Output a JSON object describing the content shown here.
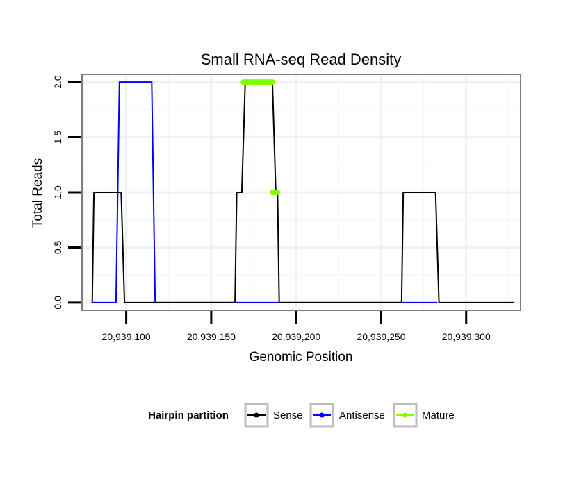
{
  "chart_data": {
    "type": "line",
    "title": "Small RNA-seq Read Density",
    "xlabel": "Genomic Position",
    "ylabel": "Total Reads",
    "xlim": [
      20939074,
      20939332
    ],
    "ylim": [
      -0.07,
      2.07
    ],
    "x_ticks": [
      20939100,
      20939150,
      20939200,
      20939250,
      20939300
    ],
    "x_tick_labels": [
      "20,939,100",
      "20,939,150",
      "20,939,200",
      "20,939,250",
      "20,939,300"
    ],
    "y_ticks": [
      0.0,
      0.5,
      1.0,
      1.5,
      2.0
    ],
    "y_tick_labels": [
      "0.0",
      "0.5",
      "1.0",
      "1.5",
      "2.0"
    ],
    "grid": true,
    "legend": {
      "title": "Hairpin partition",
      "position": "bottom",
      "entries": [
        "Sense",
        "Antisense",
        "Mature"
      ]
    },
    "series": [
      {
        "name": "Antisense",
        "color": "#0000ff",
        "points": [
          [
            20939080,
            0
          ],
          [
            20939094,
            0
          ],
          [
            20939096,
            2
          ],
          [
            20939115,
            2
          ],
          [
            20939117,
            0
          ],
          [
            20939164,
            0
          ],
          [
            20939260,
            0
          ],
          [
            20939283,
            0
          ]
        ]
      },
      {
        "name": "Sense",
        "color": "#000000",
        "points": [
          [
            20939080,
            0
          ],
          [
            20939081,
            1
          ],
          [
            20939097,
            1
          ],
          [
            20939099,
            0
          ],
          [
            20939164,
            0
          ],
          [
            20939165,
            1
          ],
          [
            20939168,
            1
          ],
          [
            20939170,
            2
          ],
          [
            20939186,
            2
          ],
          [
            20939188,
            1
          ],
          [
            20939189,
            1
          ],
          [
            20939190,
            0
          ],
          [
            20939262,
            0
          ],
          [
            20939263,
            1
          ],
          [
            20939282,
            1
          ],
          [
            20939284,
            0
          ],
          [
            20939328,
            0
          ]
        ]
      },
      {
        "name": "Mature",
        "color": "#7fff00",
        "segments": [
          [
            [
              20939169,
              2
            ],
            [
              20939186,
              2
            ]
          ],
          [
            [
              20939186,
              1
            ],
            [
              20939189,
              1
            ]
          ]
        ]
      }
    ]
  }
}
